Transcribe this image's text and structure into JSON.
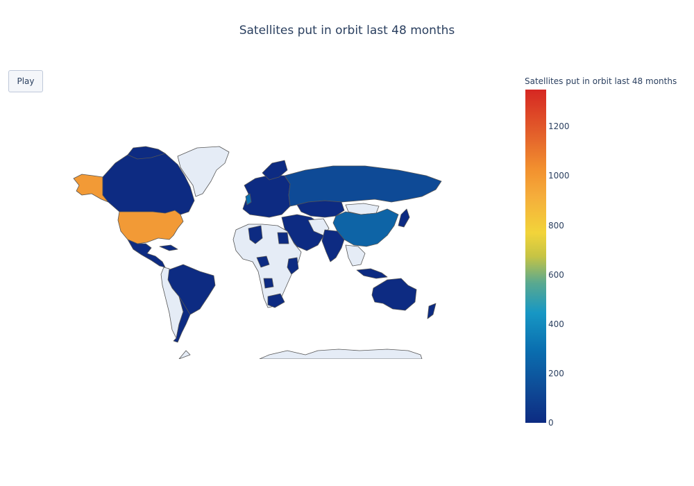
{
  "title": "Satellites put in orbit last 48 months",
  "controls": {
    "play_label": "Play"
  },
  "colorbar": {
    "title": "Satellites put in orbit last 48 months",
    "range": [
      0,
      1350
    ],
    "ticks": [
      "0",
      "200",
      "400",
      "600",
      "800",
      "1000",
      "1200"
    ],
    "colorscale": [
      "#0d2b82",
      "#0a6fb0",
      "#1797c4",
      "#f2d43a",
      "#f2912f",
      "#d62722"
    ]
  },
  "map_data": {
    "projection": "equirectangular",
    "no_data_color": "#e5ecf6",
    "border_color": "#444444",
    "highlighted": [
      {
        "region": "United States",
        "value": 1010
      },
      {
        "region": "Alaska",
        "value": 1010
      },
      {
        "region": "China",
        "value": 150
      }
    ]
  }
}
